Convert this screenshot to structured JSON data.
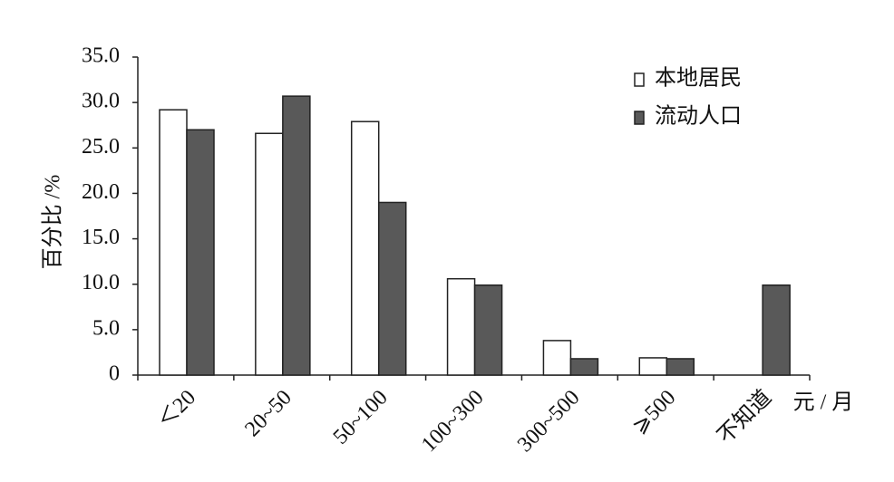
{
  "chart_data": {
    "type": "bar",
    "y_label": "百分比 /%",
    "x_label": "元 / 月",
    "categories": [
      "＜20",
      "20~50",
      "50~100",
      "100~300",
      "300~500",
      "⩾500",
      "不知道"
    ],
    "series": [
      {
        "name": "本地居民",
        "color": "#ffffff",
        "values": [
          29.2,
          26.6,
          27.9,
          10.6,
          3.8,
          1.9,
          0
        ]
      },
      {
        "name": "流动人口",
        "color": "#595959",
        "values": [
          27.0,
          30.7,
          19.0,
          9.9,
          1.8,
          1.8,
          9.9
        ]
      }
    ],
    "ylim": [
      0,
      35
    ],
    "yticks": [
      0,
      {
        "value": 5,
        "label": "5.0"
      },
      {
        "value": 10,
        "label": "10.0"
      },
      {
        "value": 15,
        "label": "15.0"
      },
      {
        "value": 20,
        "label": "20.0"
      },
      {
        "value": 25,
        "label": "25.0"
      },
      {
        "value": 30,
        "label": "30.0"
      },
      {
        "value": 35,
        "label": "35.0"
      }
    ],
    "legend": "top-right"
  }
}
